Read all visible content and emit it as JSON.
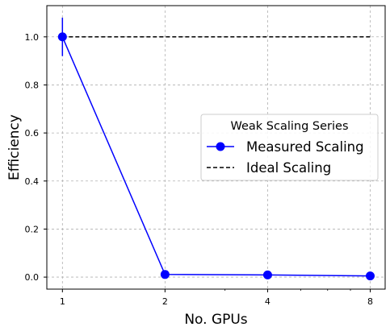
{
  "chart_data": {
    "type": "line",
    "title": "",
    "xlabel": "No. GPUs",
    "ylabel": "Efficiency",
    "x_scale": "log2",
    "x": [
      1,
      2,
      4,
      8
    ],
    "x_tick_labels": [
      "1",
      "2",
      "4",
      "8"
    ],
    "xlim": [
      0.9,
      8.85
    ],
    "ylim": [
      -0.05,
      1.13
    ],
    "y_ticks": [
      0.0,
      0.2,
      0.4,
      0.6,
      0.8,
      1.0
    ],
    "y_tick_labels": [
      "0.0",
      "0.2",
      "0.4",
      "0.6",
      "0.8",
      "1.0"
    ],
    "grid": true,
    "legend": {
      "title": "Weak Scaling Series",
      "position": "center-right"
    },
    "series": [
      {
        "name": "Measured Scaling",
        "values": [
          1.0,
          0.011,
          0.009,
          0.005
        ],
        "error": [
          0.08,
          0,
          0,
          0
        ],
        "color": "#0000ff",
        "style": "solid",
        "marker": "circle"
      },
      {
        "name": "Ideal Scaling",
        "values": [
          1.0,
          1.0,
          1.0,
          1.0
        ],
        "color": "#000000",
        "style": "dashed",
        "marker": "none"
      }
    ]
  }
}
